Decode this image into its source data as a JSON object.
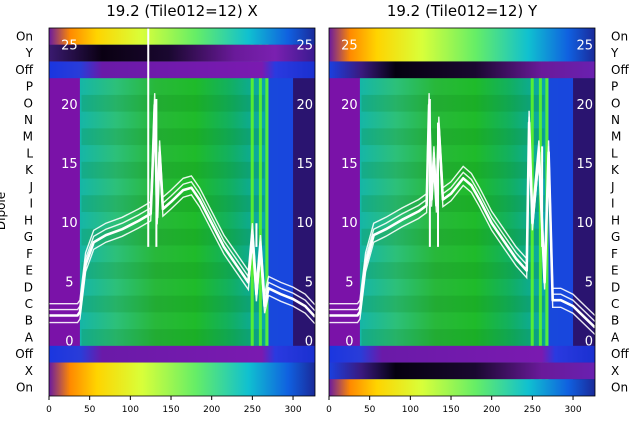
{
  "figure": {
    "ylabel": "Dipole",
    "row_labels": [
      "On",
      "Y",
      "Off",
      "P",
      "O",
      "N",
      "M",
      "L",
      "K",
      "J",
      "I",
      "H",
      "G",
      "F",
      "E",
      "D",
      "C",
      "B",
      "A",
      "Off",
      "X",
      "On"
    ],
    "right_row_labels": [
      "On",
      "Y",
      "Off",
      "P",
      "O",
      "N",
      "M",
      "L",
      "K",
      "J",
      "I",
      "H",
      "G",
      "F",
      "E",
      "D",
      "C",
      "B",
      "A",
      "Off",
      "X",
      "On"
    ]
  },
  "chart_data": [
    {
      "type": "heatmap",
      "title": "19.2 (Tile012=12) X",
      "xlabel": "",
      "ylabel": "Dipole",
      "xlim": [
        0,
        327
      ],
      "x_ticks": [
        0,
        50,
        100,
        150,
        200,
        250,
        300
      ],
      "overlay_y_ticks": [
        0,
        5,
        10,
        15,
        20,
        25
      ],
      "overlay_ylim": [
        -4.6,
        26.5
      ],
      "colormap": "nipy_spectral",
      "line_color": "#ffffff",
      "overlay_line_series": {
        "x": [
          0,
          35,
          38,
          45,
          55,
          70,
          90,
          110,
          125,
          127,
          130,
          133,
          136,
          140,
          150,
          165,
          175,
          185,
          200,
          215,
          230,
          245,
          250,
          255,
          260,
          265,
          270,
          285,
          300,
          315,
          327
        ],
        "y": [
          2.2,
          2.2,
          2.5,
          6.5,
          8.4,
          9.0,
          9.5,
          10.2,
          10.8,
          14.0,
          20.0,
          10.5,
          16.0,
          11.2,
          11.8,
          12.8,
          13.0,
          12.0,
          10.0,
          8.0,
          6.5,
          5.0,
          9.0,
          4.0,
          8.0,
          3.0,
          4.5,
          4.0,
          3.6,
          3.0,
          2.1
        ],
        "spikes": [
          {
            "x": 122,
            "y": 26.5
          },
          {
            "x": 132,
            "y": 20.5
          },
          {
            "x": 255,
            "y": 10.0
          }
        ]
      }
    },
    {
      "type": "heatmap",
      "title": "19.2 (Tile012=12) Y",
      "xlabel": "",
      "ylabel": "",
      "xlim": [
        0,
        327
      ],
      "x_ticks": [
        0,
        50,
        100,
        150,
        200,
        250,
        300
      ],
      "overlay_y_ticks": [
        0,
        5,
        10,
        15,
        20,
        25
      ],
      "overlay_ylim": [
        -4.6,
        26.5
      ],
      "colormap": "nipy_spectral",
      "line_color": "#ffffff",
      "overlay_line_series": {
        "x": [
          0,
          35,
          38,
          45,
          55,
          70,
          90,
          110,
          120,
          123,
          126,
          129,
          132,
          135,
          140,
          150,
          165,
          175,
          185,
          200,
          215,
          230,
          243,
          246,
          250,
          258,
          265,
          270,
          275,
          285,
          300,
          315,
          327
        ],
        "y": [
          2.2,
          2.2,
          2.5,
          6.5,
          9.0,
          9.5,
          10.3,
          11.0,
          11.5,
          20.0,
          12.0,
          15.5,
          11.5,
          18.0,
          12.0,
          12.5,
          13.8,
          13.2,
          12.0,
          10.0,
          8.5,
          7.0,
          6.0,
          18.5,
          10.0,
          16.0,
          5.0,
          16.0,
          3.5,
          3.5,
          3.0,
          2.0,
          1.2
        ],
        "spikes": [
          {
            "x": 124,
            "y": 20.5
          },
          {
            "x": 134,
            "y": 18.5
          },
          {
            "x": 262,
            "y": 16.5
          }
        ]
      }
    }
  ]
}
